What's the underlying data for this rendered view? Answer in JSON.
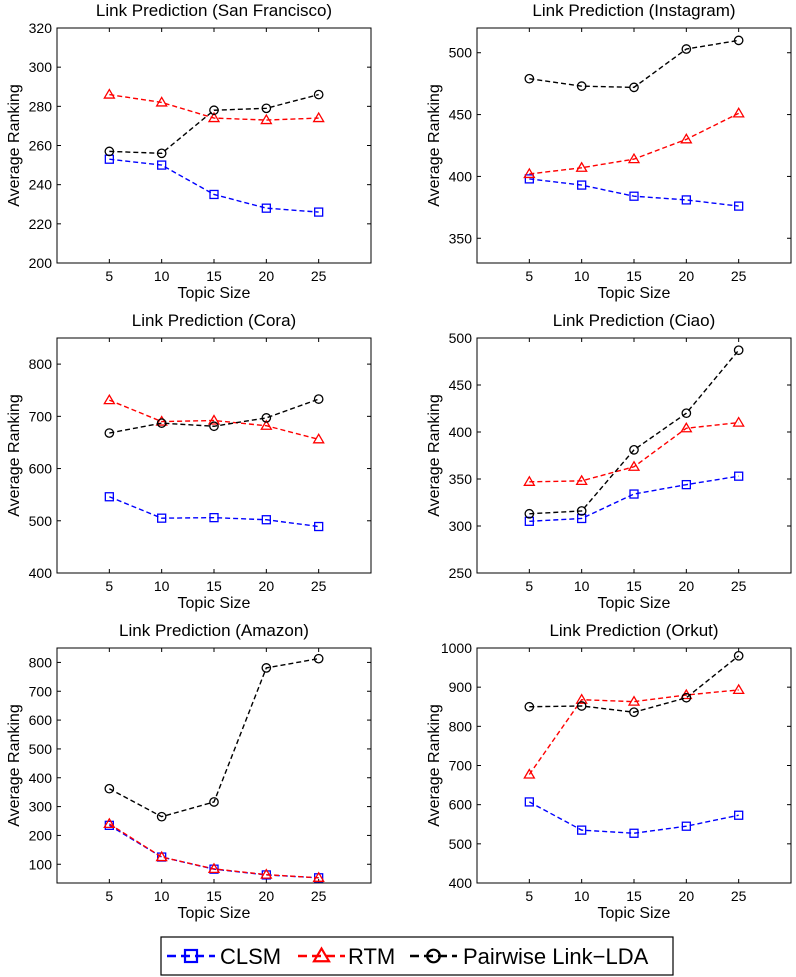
{
  "legend": [
    {
      "name": "CLSM",
      "color": "#0000ff",
      "marker": "square"
    },
    {
      "name": "RTM",
      "color": "#ff0000",
      "marker": "triangle"
    },
    {
      "name": "Pairwise Link−LDA",
      "color": "#000000",
      "marker": "circle"
    }
  ],
  "chart_data": [
    {
      "type": "line",
      "title": "Link Prediction (San Francisco)",
      "xlabel": "Topic Size",
      "ylabel": "Average Ranking",
      "x": [
        5,
        10,
        15,
        20,
        25
      ],
      "xlim": [
        0,
        30
      ],
      "ylim": [
        200,
        320
      ],
      "yticks": [
        200,
        220,
        240,
        260,
        280,
        300,
        320
      ],
      "series": [
        {
          "name": "CLSM",
          "values": [
            253,
            250,
            235,
            228,
            226
          ]
        },
        {
          "name": "RTM",
          "values": [
            286,
            282,
            274,
            273,
            274
          ]
        },
        {
          "name": "Pairwise Link−LDA",
          "values": [
            257,
            256,
            278,
            279,
            286
          ]
        }
      ]
    },
    {
      "type": "line",
      "title": "Link Prediction (Instagram)",
      "xlabel": "Topic Size",
      "ylabel": "Average Ranking",
      "x": [
        5,
        10,
        15,
        20,
        25
      ],
      "xlim": [
        0,
        30
      ],
      "ylim": [
        330,
        520
      ],
      "yticks": [
        350,
        400,
        450,
        500
      ],
      "series": [
        {
          "name": "CLSM",
          "values": [
            398,
            393,
            384,
            381,
            376
          ]
        },
        {
          "name": "RTM",
          "values": [
            402,
            407,
            414,
            430,
            451
          ]
        },
        {
          "name": "Pairwise Link−LDA",
          "values": [
            479,
            473,
            472,
            503,
            510
          ]
        }
      ]
    },
    {
      "type": "line",
      "title": "Link Prediction (Cora)",
      "xlabel": "Topic Size",
      "ylabel": "Average Ranking",
      "x": [
        5,
        10,
        15,
        20,
        25
      ],
      "xlim": [
        0,
        30
      ],
      "ylim": [
        400,
        850
      ],
      "yticks": [
        400,
        500,
        600,
        700,
        800
      ],
      "series": [
        {
          "name": "CLSM",
          "values": [
            546,
            505,
            506,
            502,
            489
          ]
        },
        {
          "name": "RTM",
          "values": [
            731,
            690,
            692,
            682,
            656
          ]
        },
        {
          "name": "Pairwise Link−LDA",
          "values": [
            668,
            687,
            681,
            697,
            733
          ]
        }
      ]
    },
    {
      "type": "line",
      "title": "Link Prediction (Ciao)",
      "xlabel": "Topic Size",
      "ylabel": "Average Ranking",
      "x": [
        5,
        10,
        15,
        20,
        25
      ],
      "xlim": [
        0,
        30
      ],
      "ylim": [
        250,
        500
      ],
      "yticks": [
        250,
        300,
        350,
        400,
        450,
        500
      ],
      "series": [
        {
          "name": "CLSM",
          "values": [
            305,
            308,
            334,
            344,
            353
          ]
        },
        {
          "name": "RTM",
          "values": [
            347,
            348,
            363,
            404,
            410
          ]
        },
        {
          "name": "Pairwise Link−LDA",
          "values": [
            313,
            316,
            381,
            420,
            487
          ]
        }
      ]
    },
    {
      "type": "line",
      "title": "Link Prediction (Amazon)",
      "xlabel": "Topic Size",
      "ylabel": "Average Ranking",
      "x": [
        5,
        10,
        15,
        20,
        25
      ],
      "xlim": [
        0,
        30
      ],
      "ylim": [
        35,
        850
      ],
      "yticks": [
        100,
        200,
        300,
        400,
        500,
        600,
        700,
        800
      ],
      "series": [
        {
          "name": "CLSM",
          "values": [
            235,
            125,
            83,
            63,
            53
          ]
        },
        {
          "name": "RTM",
          "values": [
            240,
            125,
            84,
            64,
            53
          ]
        },
        {
          "name": "Pairwise Link−LDA",
          "values": [
            362,
            265,
            316,
            781,
            813
          ]
        }
      ]
    },
    {
      "type": "line",
      "title": "Link Prediction (Orkut)",
      "xlabel": "Topic Size",
      "ylabel": "Average Ranking",
      "x": [
        5,
        10,
        15,
        20,
        25
      ],
      "xlim": [
        0,
        30
      ],
      "ylim": [
        400,
        1000
      ],
      "yticks": [
        400,
        500,
        600,
        700,
        800,
        900,
        1000
      ],
      "series": [
        {
          "name": "CLSM",
          "values": [
            607,
            535,
            527,
            545,
            573
          ]
        },
        {
          "name": "RTM",
          "values": [
            677,
            868,
            863,
            880,
            893
          ]
        },
        {
          "name": "Pairwise Link−LDA",
          "values": [
            850,
            852,
            836,
            873,
            980
          ]
        }
      ]
    }
  ]
}
